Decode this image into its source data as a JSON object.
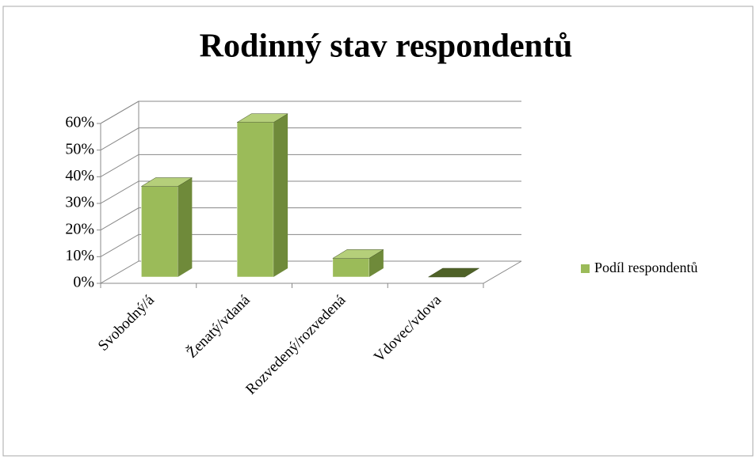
{
  "chart_data": {
    "type": "bar3d",
    "title": "Rodinný stav respondentů",
    "categories": [
      "Svobodný/á",
      "Ženatý/vdaná",
      "Rozvedený/rozvedená",
      "Vdovec/vdova"
    ],
    "series": [
      {
        "name": "Podíl respondentů",
        "color": "#9bbb59",
        "values": [
          34,
          58,
          7,
          0
        ]
      }
    ],
    "ylim": [
      0,
      60
    ],
    "yticks": [
      {
        "value": 0,
        "label": "0%"
      },
      {
        "value": 10,
        "label": "10%"
      },
      {
        "value": 20,
        "label": "20%"
      },
      {
        "value": 30,
        "label": "30%"
      },
      {
        "value": 40,
        "label": "40%"
      },
      {
        "value": 50,
        "label": "50%"
      },
      {
        "value": 60,
        "label": "60%"
      }
    ],
    "grid": true,
    "legend": "right"
  }
}
